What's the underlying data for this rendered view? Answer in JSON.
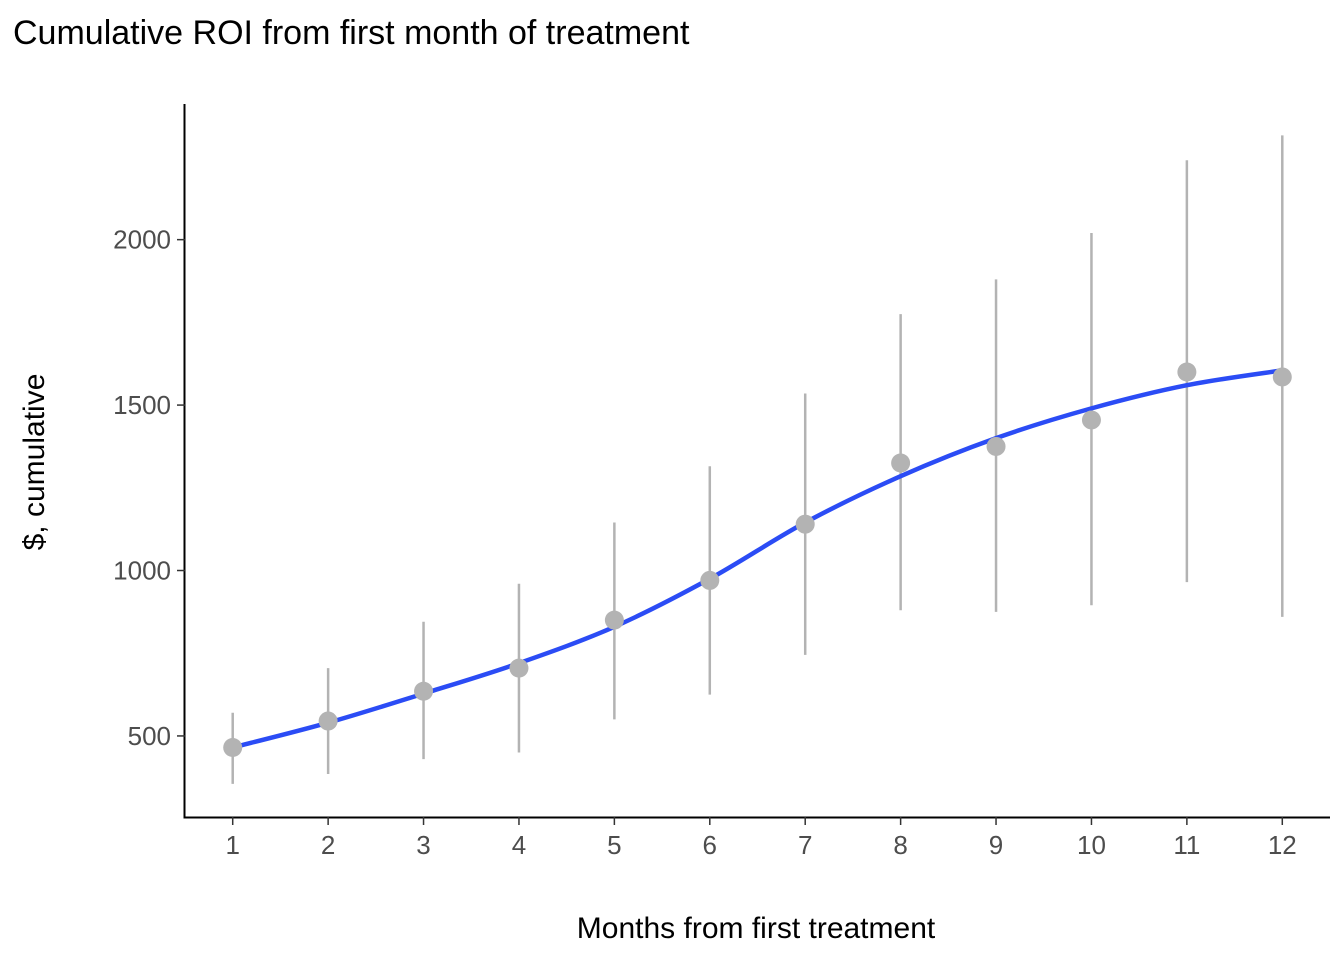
{
  "chart_data": {
    "type": "line",
    "title": "Cumulative ROI from first month of treatment",
    "xlabel": "Months from first treatment",
    "ylabel": "$, cumulative",
    "x": [
      1,
      2,
      3,
      4,
      5,
      6,
      7,
      8,
      9,
      10,
      11,
      12
    ],
    "xlim": [
      0.5,
      12.5
    ],
    "ylim": [
      255,
      2410
    ],
    "yticks": [
      500,
      1000,
      1500,
      2000
    ],
    "grid": false,
    "points": {
      "color": "#b3b3b3",
      "values": [
        465,
        545,
        635,
        705,
        850,
        970,
        1140,
        1325,
        1375,
        1455,
        1600,
        1585
      ],
      "lower": [
        355,
        385,
        430,
        450,
        550,
        625,
        745,
        880,
        875,
        895,
        965,
        860
      ],
      "upper": [
        570,
        705,
        845,
        960,
        1145,
        1315,
        1535,
        1775,
        1880,
        2020,
        2240,
        2315
      ]
    },
    "smooth": {
      "color": "#2b4cf5",
      "values": [
        465,
        540,
        628,
        720,
        830,
        975,
        1145,
        1285,
        1400,
        1490,
        1560,
        1605
      ]
    }
  }
}
